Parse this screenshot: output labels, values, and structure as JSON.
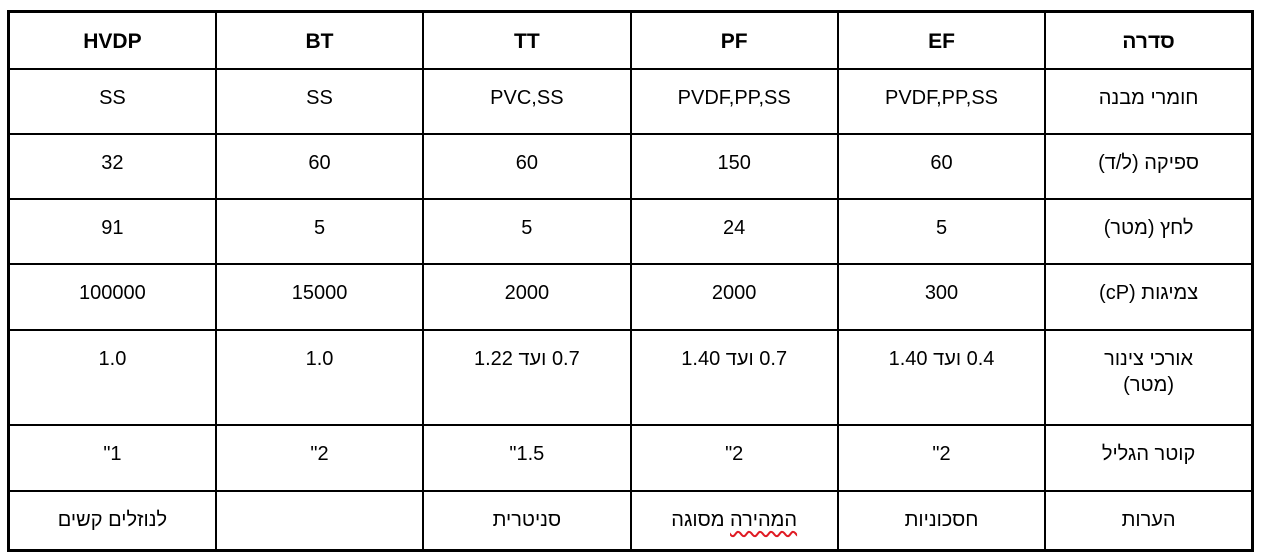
{
  "table": {
    "header": {
      "label": "סדרה",
      "hvdp": "HVDP",
      "bt": "BT",
      "tt": "TT",
      "pf": "PF",
      "ef": "EF"
    },
    "rows": {
      "materials": {
        "label": "חומרי מבנה",
        "hvdp": "SS",
        "bt": "SS",
        "tt": "PVC,SS",
        "pf": "PVDF,PP,SS",
        "ef": "PVDF,PP,SS"
      },
      "flow": {
        "label": "ספיקה (ל/ד)",
        "hvdp": "32",
        "bt": "60",
        "tt": "60",
        "pf": "150",
        "ef": "60"
      },
      "pressure": {
        "label": "לחץ (מטר)",
        "hvdp": "91",
        "bt": "5",
        "tt": "5",
        "pf": "24",
        "ef": "5"
      },
      "viscosity": {
        "label": "צמיגות (cP)",
        "hvdp": "100000",
        "bt": "15000",
        "tt": "2000",
        "pf": "2000",
        "ef": "300"
      },
      "tube_lengths": {
        "label_line1": "אורכי צינור",
        "label_line2": "(מטר)",
        "hvdp": "1.0",
        "bt": "1.0",
        "tt": "0.7 ועד 1.22",
        "pf": "0.7 ועד 1.40",
        "ef": "0.4 ועד 1.40"
      },
      "cylinder_diameter": {
        "label": "קוטר הגליל",
        "hvdp": "1\"",
        "bt": "2\"",
        "tt": "1.5\"",
        "pf": "2\"",
        "ef": "2\""
      },
      "notes": {
        "label": "הערות",
        "hvdp": "לנוזלים קשים",
        "bt": "",
        "tt": "סניטרית",
        "pf_misspelled": "המהירה",
        "pf_rest": "מסוגה",
        "ef": "חסכוניות"
      }
    }
  },
  "colors": {
    "border": "#000000",
    "text": "#000000",
    "background": "#ffffff",
    "spellcheck_underline": "#e01b24"
  }
}
